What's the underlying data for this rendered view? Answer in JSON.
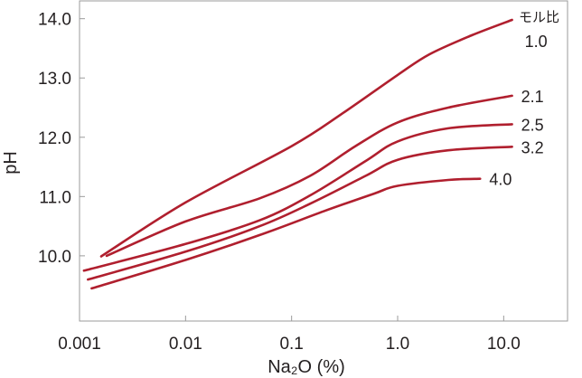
{
  "chart_data": {
    "type": "line",
    "xscale": "log",
    "xlim": [
      0.001,
      40
    ],
    "ylim": [
      8.9,
      14.3
    ],
    "x_ticks": [
      {
        "value": 0.001,
        "label": "0.001"
      },
      {
        "value": 0.01,
        "label": "0.01"
      },
      {
        "value": 0.1,
        "label": "0.1"
      },
      {
        "value": 1.0,
        "label": "1.0"
      },
      {
        "value": 10.0,
        "label": "10.0"
      }
    ],
    "y_ticks": [
      {
        "value": 10.0,
        "label": "10.0"
      },
      {
        "value": 11.0,
        "label": "11.0"
      },
      {
        "value": 12.0,
        "label": "12.0"
      },
      {
        "value": 13.0,
        "label": "13.0"
      },
      {
        "value": 14.0,
        "label": "14.0"
      }
    ],
    "xlabel": "Na₂O (%)",
    "ylabel": "pH",
    "legend_title": "モル比",
    "grid": false,
    "line_color": "#b01f2e",
    "series": [
      {
        "name": "1.0",
        "points": [
          [
            0.0016,
            9.99
          ],
          [
            0.01,
            10.9
          ],
          [
            0.1,
            11.85
          ],
          [
            0.3,
            12.4
          ],
          [
            1.0,
            13.05
          ],
          [
            2.0,
            13.4
          ],
          [
            5.0,
            13.72
          ],
          [
            12.0,
            13.98
          ]
        ]
      },
      {
        "name": "2.1",
        "points": [
          [
            0.0018,
            10.0
          ],
          [
            0.01,
            10.58
          ],
          [
            0.05,
            10.97
          ],
          [
            0.15,
            11.35
          ],
          [
            0.4,
            11.85
          ],
          [
            1.0,
            12.25
          ],
          [
            3.0,
            12.5
          ],
          [
            12.0,
            12.7
          ]
        ]
      },
      {
        "name": "2.5",
        "points": [
          [
            0.0011,
            9.75
          ],
          [
            0.01,
            10.2
          ],
          [
            0.05,
            10.6
          ],
          [
            0.15,
            11.02
          ],
          [
            0.5,
            11.6
          ],
          [
            1.0,
            11.93
          ],
          [
            3.0,
            12.15
          ],
          [
            12.0,
            12.22
          ]
        ]
      },
      {
        "name": "3.2",
        "points": [
          [
            0.0012,
            9.6
          ],
          [
            0.01,
            10.07
          ],
          [
            0.05,
            10.5
          ],
          [
            0.15,
            10.88
          ],
          [
            0.5,
            11.35
          ],
          [
            1.0,
            11.62
          ],
          [
            3.0,
            11.78
          ],
          [
            12.0,
            11.84
          ]
        ]
      },
      {
        "name": "4.0",
        "points": [
          [
            0.0013,
            9.45
          ],
          [
            0.01,
            9.93
          ],
          [
            0.05,
            10.35
          ],
          [
            0.2,
            10.75
          ],
          [
            0.6,
            11.05
          ],
          [
            1.0,
            11.18
          ],
          [
            3.0,
            11.28
          ],
          [
            6.0,
            11.3
          ]
        ]
      }
    ]
  }
}
